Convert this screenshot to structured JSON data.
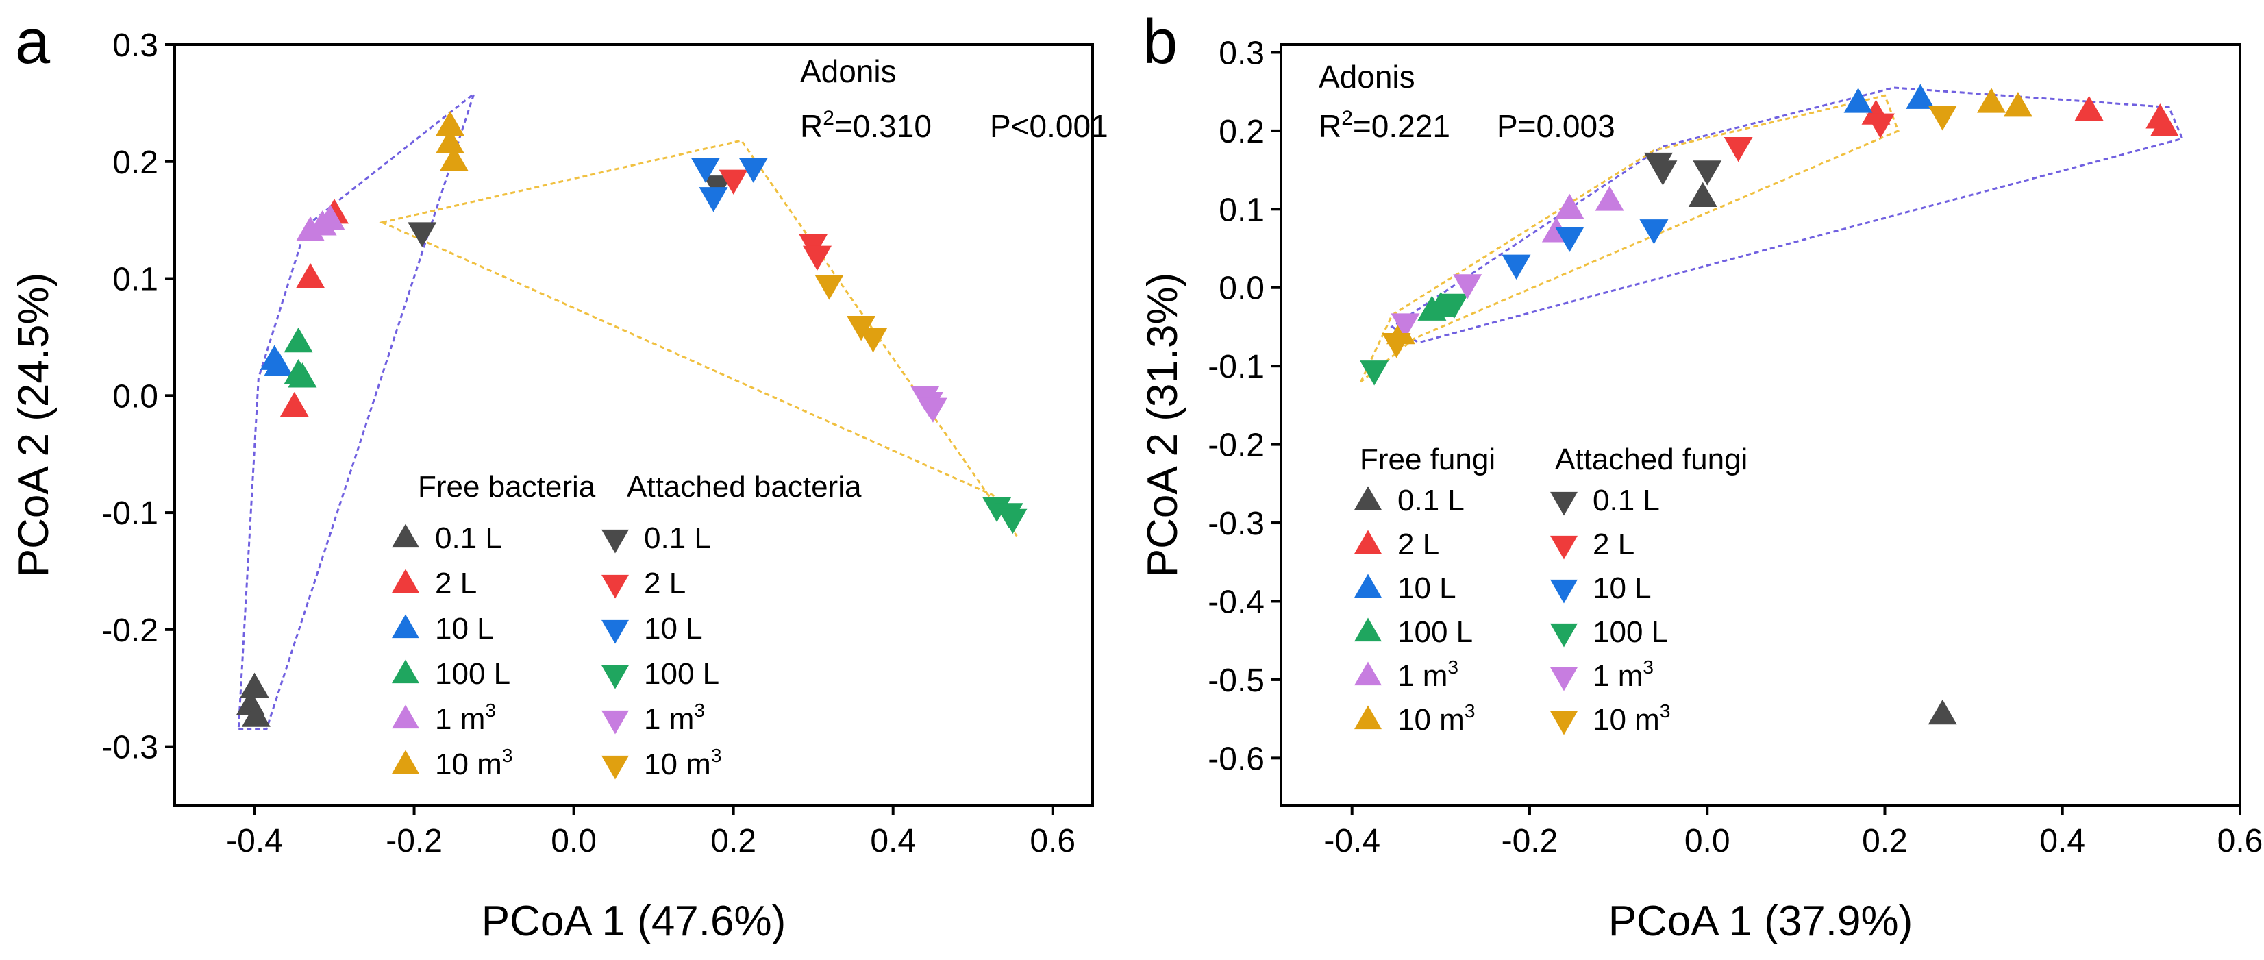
{
  "colors": {
    "gray": "#4a4a4a",
    "red": "#ef3b3b",
    "blue": "#1a73e0",
    "green": "#1fa65f",
    "purple": "#c77de0",
    "orange": "#e0a010",
    "hull_free": "#7060e0",
    "hull_attached": "#f0c040"
  },
  "chart_data": [
    {
      "type": "scatter",
      "panel_label": "a",
      "xlabel": "PCoA 1 (47.6%)",
      "ylabel": "PCoA 2 (24.5%)",
      "xlim": [
        -0.5,
        0.65
      ],
      "ylim": [
        -0.35,
        0.3
      ],
      "xticks": [
        -0.4,
        -0.2,
        0.0,
        0.2,
        0.4,
        0.6
      ],
      "xtick_labels": [
        "-0.4",
        "-0.2",
        "0.0",
        "0.2",
        "0.4",
        "0.6"
      ],
      "yticks": [
        0.3,
        0.2,
        0.1,
        0.0,
        -0.1,
        -0.2,
        -0.3
      ],
      "ytick_labels": [
        "0.3",
        "0.2",
        "0.1",
        "0.0",
        "-0.1",
        "-0.2",
        "-0.3"
      ],
      "annotation": {
        "title": "Adonis",
        "r2_prefix": "R",
        "r2_sup": "2",
        "r2_value": "=0.310",
        "p": "P<0.001"
      },
      "legend_position": "bottom-right",
      "legend_groups": [
        {
          "title": "Free bacteria",
          "marker": "up"
        },
        {
          "title": "Attached bacteria",
          "marker": "down"
        }
      ],
      "categories": [
        {
          "label": "0.1 L",
          "sup": "",
          "color": "gray"
        },
        {
          "label": "2 L",
          "sup": "",
          "color": "red"
        },
        {
          "label": "10 L",
          "sup": "",
          "color": "blue"
        },
        {
          "label": "100 L",
          "sup": "",
          "color": "green"
        },
        {
          "label": "1 m",
          "sup": "3",
          "color": "purple"
        },
        {
          "label": "10 m",
          "sup": "3",
          "color": "orange"
        }
      ],
      "series": [
        {
          "name": "Free bacteria 0.1 L",
          "marker": "up",
          "color": "gray",
          "points": [
            [
              -0.4,
              -0.25
            ],
            [
              -0.405,
              -0.265
            ],
            [
              -0.398,
              -0.275
            ]
          ]
        },
        {
          "name": "Free bacteria 2 L",
          "marker": "up",
          "color": "red",
          "points": [
            [
              -0.3,
              0.155
            ],
            [
              -0.33,
              0.1
            ],
            [
              -0.35,
              -0.01
            ]
          ]
        },
        {
          "name": "Free bacteria 10 L",
          "marker": "up",
          "color": "blue",
          "points": [
            [
              -0.375,
              0.03
            ],
            [
              -0.37,
              0.025
            ]
          ]
        },
        {
          "name": "Free bacteria 100 L",
          "marker": "up",
          "color": "green",
          "points": [
            [
              -0.345,
              0.045
            ],
            [
              -0.345,
              0.018
            ],
            [
              -0.34,
              0.015
            ]
          ]
        },
        {
          "name": "Free bacteria 1 m3",
          "marker": "up",
          "color": "purple",
          "points": [
            [
              -0.33,
              0.14
            ],
            [
              -0.315,
              0.145
            ],
            [
              -0.305,
              0.15
            ]
          ]
        },
        {
          "name": "Free bacteria 10 m3",
          "marker": "up",
          "color": "orange",
          "points": [
            [
              -0.155,
              0.23
            ],
            [
              -0.155,
              0.215
            ],
            [
              -0.15,
              0.2
            ]
          ]
        },
        {
          "name": "Attached bacteria 0.1 L",
          "marker": "down",
          "color": "gray",
          "points": [
            [
              -0.19,
              0.14
            ],
            [
              0.18,
              0.18
            ]
          ]
        },
        {
          "name": "Attached bacteria 2 L",
          "marker": "down",
          "color": "red",
          "points": [
            [
              0.2,
              0.185
            ],
            [
              0.3,
              0.13
            ],
            [
              0.305,
              0.12
            ]
          ]
        },
        {
          "name": "Attached bacteria 10 L",
          "marker": "down",
          "color": "blue",
          "points": [
            [
              0.165,
              0.195
            ],
            [
              0.175,
              0.17
            ],
            [
              0.225,
              0.195
            ]
          ]
        },
        {
          "name": "Attached bacteria 100 L",
          "marker": "down",
          "color": "green",
          "points": [
            [
              0.53,
              -0.095
            ],
            [
              0.545,
              -0.1
            ],
            [
              0.55,
              -0.105
            ]
          ]
        },
        {
          "name": "Attached bacteria 1 m3",
          "marker": "down",
          "color": "purple",
          "points": [
            [
              0.44,
              0.0
            ],
            [
              0.445,
              -0.005
            ],
            [
              0.45,
              -0.01
            ]
          ]
        },
        {
          "name": "Attached bacteria 10 m3",
          "marker": "down",
          "color": "orange",
          "points": [
            [
              0.32,
              0.095
            ],
            [
              0.36,
              0.06
            ],
            [
              0.375,
              0.05
            ]
          ]
        }
      ],
      "hulls": [
        {
          "group": "Free bacteria",
          "color": "hull_free",
          "points": [
            [
              -0.42,
              -0.285
            ],
            [
              -0.385,
              -0.285
            ],
            [
              -0.125,
              0.258
            ],
            [
              -0.335,
              0.145
            ],
            [
              -0.395,
              0.015
            ]
          ]
        },
        {
          "group": "Attached bacteria",
          "color": "hull_attached",
          "points": [
            [
              -0.24,
              0.148
            ],
            [
              0.21,
              0.218
            ],
            [
              0.555,
              -0.12
            ],
            [
              0.525,
              -0.085
            ]
          ]
        }
      ]
    },
    {
      "type": "scatter",
      "panel_label": "b",
      "xlabel": "PCoA 1 (37.9%)",
      "ylabel": "PCoA 2 (31.3%)",
      "xlim": [
        -0.48,
        0.6
      ],
      "ylim": [
        -0.66,
        0.31
      ],
      "xticks": [
        -0.4,
        -0.2,
        0.0,
        0.2,
        0.4,
        0.6
      ],
      "xtick_labels": [
        "-0.4",
        "-0.2",
        "0.0",
        "0.2",
        "0.4",
        "0.6"
      ],
      "yticks": [
        0.3,
        0.2,
        0.1,
        0.0,
        -0.1,
        -0.2,
        -0.3,
        -0.4,
        -0.5,
        -0.6
      ],
      "ytick_labels": [
        "0.3",
        "0.2",
        "0.1",
        "0.0",
        "-0.1",
        "-0.2",
        "-0.3",
        "-0.4",
        "-0.5",
        "-0.6"
      ],
      "annotation": {
        "title": "Adonis",
        "r2_prefix": "R",
        "r2_sup": "2",
        "r2_value": "=0.221",
        "p": "P=0.003"
      },
      "legend_position": "bottom-left",
      "legend_groups": [
        {
          "title": "Free fungi",
          "marker": "up"
        },
        {
          "title": "Attached fungi",
          "marker": "down"
        }
      ],
      "categories": [
        {
          "label": "0.1 L",
          "sup": "",
          "color": "gray"
        },
        {
          "label": "2 L",
          "sup": "",
          "color": "red"
        },
        {
          "label": "10 L",
          "sup": "",
          "color": "blue"
        },
        {
          "label": "100 L",
          "sup": "",
          "color": "green"
        },
        {
          "label": "1 m",
          "sup": "3",
          "color": "purple"
        },
        {
          "label": "10 m",
          "sup": "3",
          "color": "orange"
        }
      ],
      "series": [
        {
          "name": "Free fungi 0.1 L",
          "marker": "up",
          "color": "gray",
          "points": [
            [
              -0.005,
              0.115
            ],
            [
              0.265,
              -0.545
            ]
          ]
        },
        {
          "name": "Free fungi 2 L",
          "marker": "up",
          "color": "red",
          "points": [
            [
              0.19,
              0.22
            ],
            [
              0.43,
              0.225
            ],
            [
              0.51,
              0.215
            ],
            [
              0.515,
              0.205
            ]
          ]
        },
        {
          "name": "Free fungi 10 L",
          "marker": "up",
          "color": "blue",
          "points": [
            [
              0.17,
              0.235
            ],
            [
              0.24,
              0.24
            ]
          ]
        },
        {
          "name": "Free fungi 100 L",
          "marker": "up",
          "color": "green",
          "points": [
            [
              -0.31,
              -0.03
            ],
            [
              -0.3,
              -0.025
            ]
          ]
        },
        {
          "name": "Free fungi 1 m3",
          "marker": "up",
          "color": "purple",
          "points": [
            [
              -0.17,
              0.07
            ],
            [
              -0.155,
              0.1
            ],
            [
              -0.11,
              0.11
            ]
          ]
        },
        {
          "name": "Free fungi 10 m3",
          "marker": "up",
          "color": "orange",
          "points": [
            [
              -0.345,
              -0.06
            ],
            [
              0.32,
              0.235
            ],
            [
              0.35,
              0.23
            ]
          ]
        },
        {
          "name": "Attached fungi 0.1 L",
          "marker": "down",
          "color": "gray",
          "points": [
            [
              -0.055,
              0.16
            ],
            [
              -0.05,
              0.15
            ],
            [
              0.0,
              0.15
            ]
          ]
        },
        {
          "name": "Attached fungi 2 L",
          "marker": "down",
          "color": "red",
          "points": [
            [
              0.035,
              0.18
            ],
            [
              0.195,
              0.21
            ]
          ]
        },
        {
          "name": "Attached fungi 10 L",
          "marker": "down",
          "color": "blue",
          "points": [
            [
              -0.215,
              0.03
            ],
            [
              -0.155,
              0.065
            ],
            [
              -0.06,
              0.075
            ]
          ]
        },
        {
          "name": "Attached fungi 100 L",
          "marker": "down",
          "color": "green",
          "points": [
            [
              -0.375,
              -0.105
            ],
            [
              -0.285,
              -0.02
            ]
          ]
        },
        {
          "name": "Attached fungi 1 m3",
          "marker": "down",
          "color": "purple",
          "points": [
            [
              -0.34,
              -0.045
            ],
            [
              -0.27,
              0.005
            ]
          ]
        },
        {
          "name": "Attached fungi 10 m3",
          "marker": "down",
          "color": "orange",
          "points": [
            [
              -0.35,
              -0.07
            ],
            [
              0.265,
              0.22
            ]
          ]
        }
      ],
      "hulls": [
        {
          "group": "Free fungi",
          "color": "hull_free",
          "points": [
            [
              -0.355,
              -0.05
            ],
            [
              -0.325,
              -0.07
            ],
            [
              0.535,
              0.19
            ],
            [
              0.52,
              0.23
            ],
            [
              0.21,
              0.255
            ],
            [
              -0.05,
              0.18
            ]
          ]
        },
        {
          "group": "Attached fungi",
          "color": "hull_attached",
          "points": [
            [
              -0.39,
              -0.12
            ],
            [
              -0.355,
              -0.035
            ],
            [
              -0.06,
              0.175
            ],
            [
              0.2,
              0.245
            ],
            [
              0.215,
              0.2
            ],
            [
              -0.33,
              -0.065
            ]
          ]
        }
      ]
    }
  ]
}
